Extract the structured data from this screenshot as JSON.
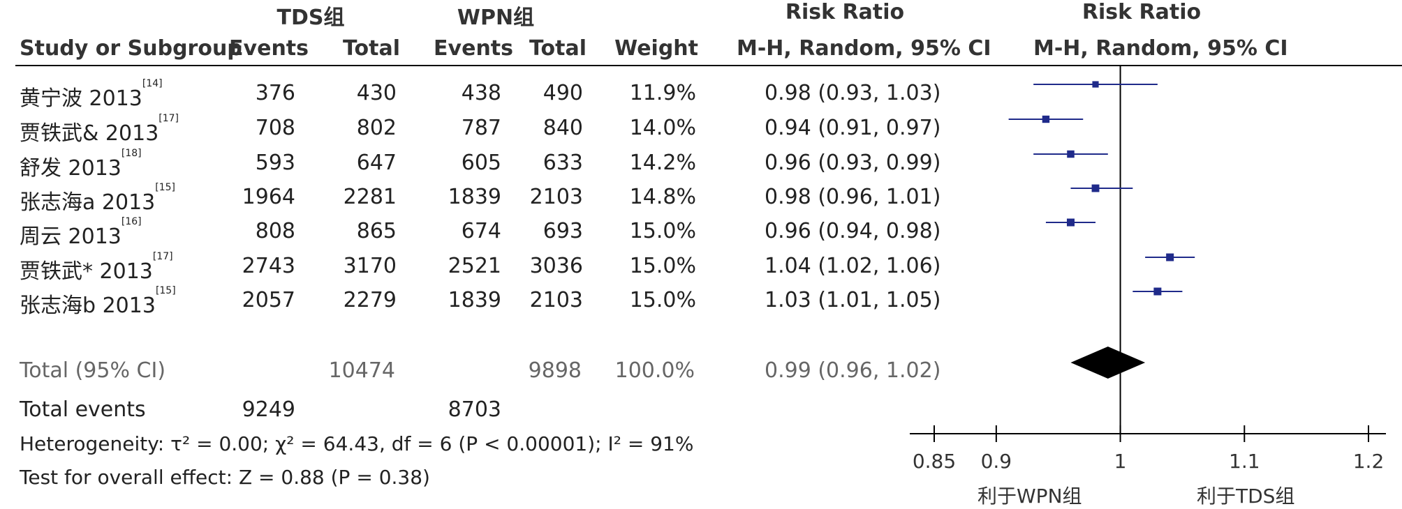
{
  "header": {
    "group1": "TDS组",
    "group2": "WPN组",
    "rr_title_left": "Risk Ratio",
    "rr_title_right": "Risk Ratio",
    "study_col": "Study or Subgroup",
    "events1": "Events",
    "total1": "Total",
    "events2": "Events",
    "total2": "Total",
    "weight": "Weight",
    "method_left": "M-H, Random, 95% CI",
    "method_right": "M-H, Random, 95% CI"
  },
  "studies": [
    {
      "name": "黄宁波 2013",
      "ref": "[14]",
      "e1": "376",
      "t1": "430",
      "e2": "438",
      "t2": "490",
      "weight": "11.9%",
      "ci": "0.98 (0.93, 1.03)"
    },
    {
      "name": "贾铁武& 2013",
      "ref": "[17]",
      "e1": "708",
      "t1": "802",
      "e2": "787",
      "t2": "840",
      "weight": "14.0%",
      "ci": "0.94 (0.91, 0.97)"
    },
    {
      "name": "舒发 2013",
      "ref": "[18]",
      "e1": "593",
      "t1": "647",
      "e2": "605",
      "t2": "633",
      "weight": "14.2%",
      "ci": "0.96 (0.93, 0.99)"
    },
    {
      "name": "张志海a 2013",
      "ref": "[15]",
      "e1": "1964",
      "t1": "2281",
      "e2": "1839",
      "t2": "2103",
      "weight": "14.8%",
      "ci": "0.98 (0.96, 1.01)"
    },
    {
      "name": "周云 2013",
      "ref": "[16]",
      "e1": "808",
      "t1": "865",
      "e2": "674",
      "t2": "693",
      "weight": "15.0%",
      "ci": "0.96 (0.94, 0.98)"
    },
    {
      "name": "贾铁武* 2013",
      "ref": "[17]",
      "e1": "2743",
      "t1": "3170",
      "e2": "2521",
      "t2": "3036",
      "weight": "15.0%",
      "ci": "1.04 (1.02, 1.06)"
    },
    {
      "name": "张志海b 2013",
      "ref": "[15]",
      "e1": "2057",
      "t1": "2279",
      "e2": "1839",
      "t2": "2103",
      "weight": "15.0%",
      "ci": "1.03 (1.01, 1.05)"
    }
  ],
  "total": {
    "label": "Total (95% CI)",
    "t1": "10474",
    "t2": "9898",
    "weight": "100.0%",
    "ci": "0.99 (0.96, 1.02)"
  },
  "total_events": {
    "label": "Total events",
    "e1": "9249",
    "e2": "8703"
  },
  "heterogeneity": "Heterogeneity: τ² = 0.00; χ² = 64.43, df = 6 (P < 0.00001); I² = 91%",
  "overall_effect": "Test for overall effect: Z = 0.88 (P = 0.38)",
  "axis": {
    "favours_left": "利于WPN组",
    "favours_right": "利于TDS组"
  },
  "chart_data": {
    "type": "forest",
    "xlim": [
      0.85,
      1.2
    ],
    "ticks": [
      0.85,
      0.9,
      1,
      1.1,
      1.2
    ],
    "tick_labels": [
      "0.85",
      "0.9",
      "1",
      "1.1",
      "1.2"
    ],
    "reference": 1,
    "studies": [
      {
        "rr": 0.98,
        "lo": 0.93,
        "hi": 1.03,
        "weight": 11.9
      },
      {
        "rr": 0.94,
        "lo": 0.91,
        "hi": 0.97,
        "weight": 14.0
      },
      {
        "rr": 0.96,
        "lo": 0.93,
        "hi": 0.99,
        "weight": 14.2
      },
      {
        "rr": 0.98,
        "lo": 0.96,
        "hi": 1.01,
        "weight": 14.8
      },
      {
        "rr": 0.96,
        "lo": 0.94,
        "hi": 0.98,
        "weight": 15.0
      },
      {
        "rr": 1.04,
        "lo": 1.02,
        "hi": 1.06,
        "weight": 15.0
      },
      {
        "rr": 1.03,
        "lo": 1.01,
        "hi": 1.05,
        "weight": 15.0
      }
    ],
    "pooled": {
      "rr": 0.99,
      "lo": 0.96,
      "hi": 1.02
    },
    "colors": {
      "marker": "#1f2a8a",
      "line": "#1f2a8a",
      "diamond": "#000000",
      "axis": "#000000"
    }
  }
}
